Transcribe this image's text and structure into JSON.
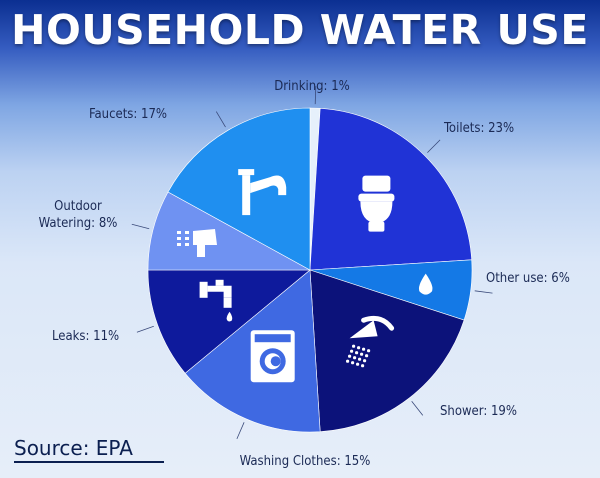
{
  "title": "HOUSEHOLD WATER USE",
  "source": "Source: EPA",
  "chart_data": {
    "type": "pie",
    "title": "HOUSEHOLD WATER USE",
    "unit": "%",
    "slices": [
      {
        "label": "Drinking: 1%",
        "name": "Drinking",
        "value": 1,
        "color": "#e6f0fb",
        "icon": ""
      },
      {
        "label": "Toilets: 23%",
        "name": "Toilets",
        "value": 23,
        "color": "#2033d6",
        "icon": "toilet-icon"
      },
      {
        "label": "Other use: 6%",
        "name": "Other use",
        "value": 6,
        "color": "#1479e6",
        "icon": "water-drop-icon"
      },
      {
        "label": "Shower: 19%",
        "name": "Shower",
        "value": 19,
        "color": "#0c127a",
        "icon": "shower-icon"
      },
      {
        "label": "Washing Clothes: 15%",
        "name": "Washing Clothes",
        "value": 15,
        "color": "#3f69e2",
        "icon": "washing-machine-icon"
      },
      {
        "label": "Leaks: 11%",
        "name": "Leaks",
        "value": 11,
        "color": "#0e1a9c",
        "icon": "leaking-tap-icon"
      },
      {
        "label": "Outdoor Watering: 8%",
        "name": "Outdoor Watering",
        "value": 8,
        "color": "#6f92f2",
        "icon": "hose-icon"
      },
      {
        "label": "Faucets: 17%",
        "name": "Faucets",
        "value": 17,
        "color": "#1f8ff0",
        "icon": "faucet-icon"
      }
    ]
  }
}
